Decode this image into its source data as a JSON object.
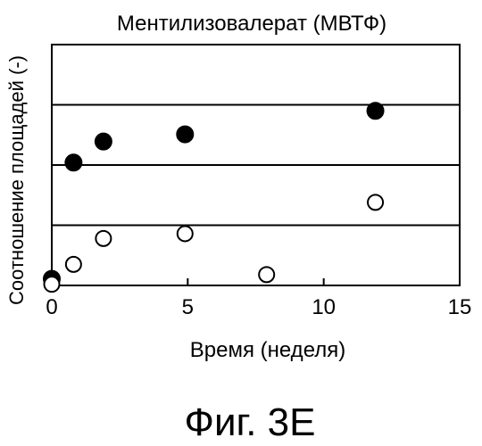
{
  "figure_label": "Фиг. 3E",
  "chart_data": {
    "type": "scatter",
    "title": "Ментилизовалерат (МВТФ)",
    "xlabel": "Время (неделя)",
    "ylabel": "Соотношение площадей (-)",
    "xlim": [
      0,
      15
    ],
    "ylim": [
      0,
      4
    ],
    "x_ticks": [
      0,
      5,
      10,
      15
    ],
    "x_tick_labels": [
      "0",
      "5",
      "10",
      "15"
    ],
    "y_gridlines": [
      1,
      2,
      3
    ],
    "grid": "horizontal",
    "y_tick_labels_shown": false,
    "series": [
      {
        "marker": "filled-circle",
        "color": "#000000",
        "points": [
          {
            "x": 0,
            "y": 0.11
          },
          {
            "x": 0.8,
            "y": 2.04
          },
          {
            "x": 1.9,
            "y": 2.39
          },
          {
            "x": 4.9,
            "y": 2.51
          },
          {
            "x": 11.9,
            "y": 2.9
          }
        ]
      },
      {
        "marker": "open-circle",
        "color": "#000000",
        "points": [
          {
            "x": 0,
            "y": 0.02
          },
          {
            "x": 0.8,
            "y": 0.35
          },
          {
            "x": 1.9,
            "y": 0.78
          },
          {
            "x": 4.9,
            "y": 0.86
          },
          {
            "x": 7.9,
            "y": 0.18
          },
          {
            "x": 11.9,
            "y": 1.38
          }
        ]
      }
    ]
  }
}
